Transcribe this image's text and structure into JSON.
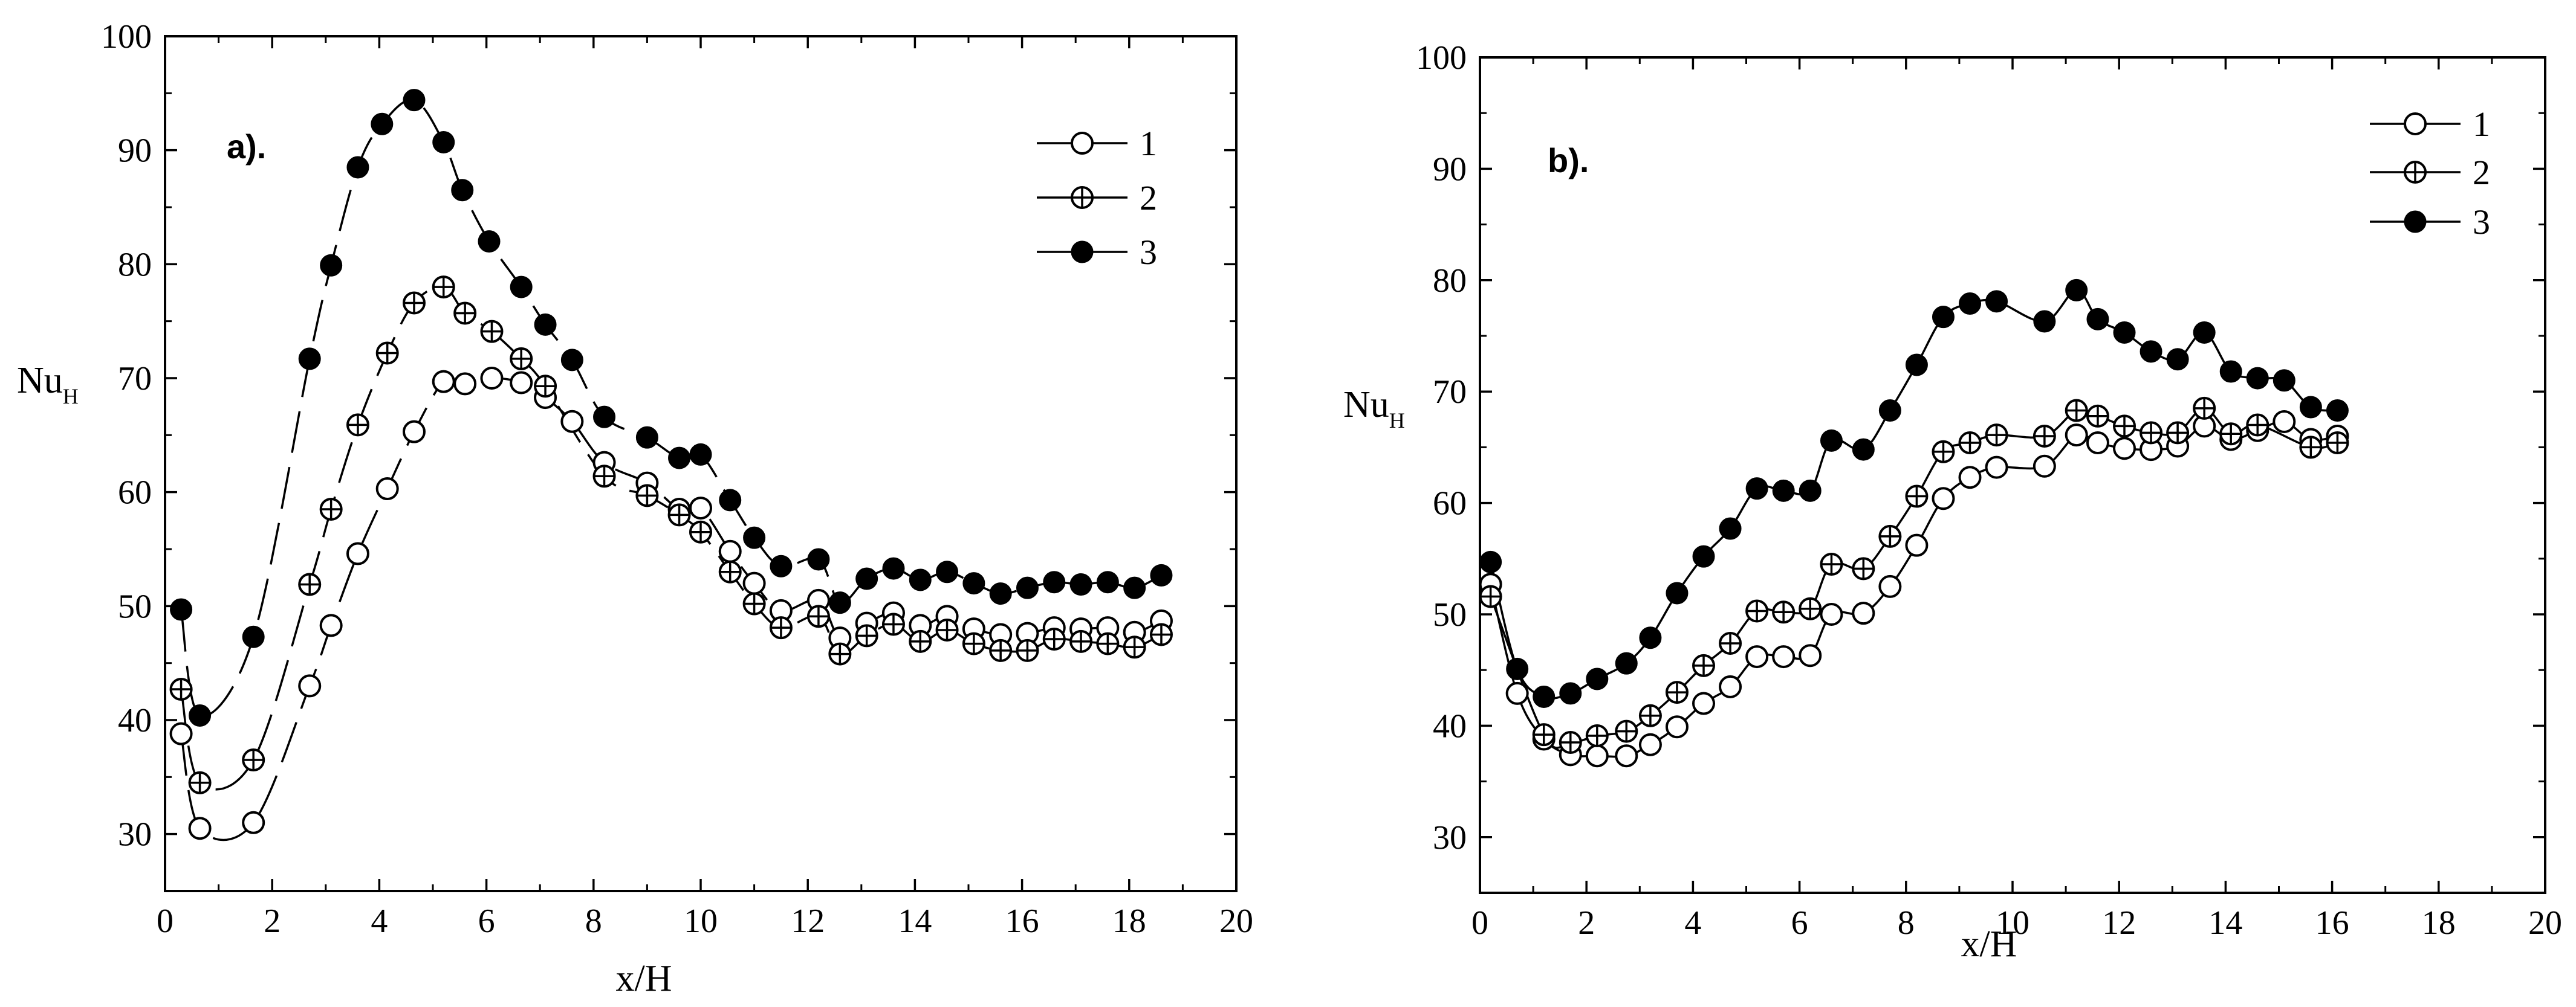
{
  "chart_data": [
    {
      "type": "scatter",
      "panel_label": "a).",
      "xlabel": "x/H",
      "ylabel_main": "Nu",
      "ylabel_sub": "H",
      "xlim": [
        0,
        20
      ],
      "ylim": [
        25,
        100
      ],
      "x_ticks": [
        0,
        2,
        4,
        6,
        8,
        10,
        12,
        14,
        16,
        18,
        20
      ],
      "y_ticks": [
        30,
        40,
        50,
        60,
        70,
        80,
        90,
        100
      ],
      "x_tick_labels": [
        "0",
        "2",
        "4",
        "6",
        "8",
        "10",
        "12",
        "14",
        "16",
        "18",
        "20"
      ],
      "y_tick_labels": [
        "30",
        "40",
        "50",
        "60",
        "70",
        "80",
        "90",
        "100"
      ],
      "legend_position": "top-right",
      "series": [
        {
          "name": "1",
          "marker": "open-circle",
          "line": "long-dash",
          "x": [
            0.3,
            0.65,
            1.65,
            2.7,
            3.1,
            3.6,
            4.15,
            4.65,
            5.2,
            5.6,
            6.1,
            6.65,
            7.1,
            7.6,
            8.2,
            9.0,
            9.6,
            10.0,
            10.55,
            11.0,
            11.5,
            12.2,
            12.6,
            13.1,
            13.6,
            14.1,
            14.6,
            15.1,
            15.6,
            16.1,
            16.6,
            17.1,
            17.6,
            18.1,
            18.6
          ],
          "y": [
            38.8,
            30.5,
            31.0,
            43.0,
            48.3,
            54.6,
            60.3,
            65.3,
            69.7,
            69.5,
            70.0,
            69.6,
            68.3,
            66.2,
            62.6,
            60.8,
            58.5,
            58.6,
            54.8,
            52.0,
            49.6,
            50.5,
            47.2,
            48.5,
            49.4,
            48.3,
            49.1,
            48.0,
            47.5,
            47.6,
            48.1,
            48.0,
            48.1,
            47.7,
            48.7
          ]
        },
        {
          "name": "2",
          "marker": "crossed-circle",
          "line": "long-dash",
          "x": [
            0.3,
            0.65,
            1.65,
            2.7,
            3.1,
            3.6,
            4.15,
            4.65,
            5.2,
            5.6,
            6.1,
            6.65,
            7.1,
            8.2,
            9.0,
            9.6,
            10.0,
            10.55,
            11.0,
            11.5,
            12.2,
            12.6,
            13.1,
            13.6,
            14.1,
            14.6,
            15.1,
            15.6,
            16.1,
            16.6,
            17.1,
            17.6,
            18.1,
            18.6
          ],
          "y": [
            42.7,
            34.5,
            36.5,
            51.9,
            58.5,
            65.9,
            72.2,
            76.6,
            78.0,
            75.7,
            74.1,
            71.7,
            69.3,
            61.4,
            59.7,
            58.0,
            56.5,
            53.0,
            50.2,
            48.1,
            49.1,
            45.8,
            47.4,
            48.4,
            46.9,
            47.9,
            46.7,
            46.1,
            46.1,
            47.1,
            46.9,
            46.7,
            46.4,
            47.5
          ]
        },
        {
          "name": "3",
          "marker": "filled-circle",
          "line": "long-dash",
          "x": [
            0.3,
            0.65,
            1.65,
            2.7,
            3.1,
            3.6,
            4.05,
            4.65,
            5.2,
            5.55,
            6.05,
            6.65,
            7.1,
            7.6,
            8.2,
            9.0,
            9.6,
            10.0,
            10.55,
            11.0,
            11.5,
            12.2,
            12.6,
            13.1,
            13.6,
            14.1,
            14.6,
            15.1,
            15.6,
            16.1,
            16.6,
            17.1,
            17.6,
            18.1,
            18.6
          ],
          "y": [
            49.7,
            40.4,
            47.3,
            71.7,
            79.9,
            88.5,
            92.3,
            94.4,
            90.7,
            86.5,
            82.0,
            78.0,
            74.7,
            71.6,
            66.6,
            64.8,
            63.0,
            63.3,
            59.3,
            56.0,
            53.5,
            54.1,
            50.3,
            52.4,
            53.3,
            52.3,
            53.0,
            52.0,
            51.1,
            51.6,
            52.1,
            51.9,
            52.1,
            51.6,
            52.7
          ]
        }
      ]
    },
    {
      "type": "line",
      "panel_label": "b).",
      "xlabel": "x/H",
      "ylabel_main": "Nu",
      "ylabel_sub": "H",
      "xlim": [
        0,
        20
      ],
      "ylim": [
        25,
        100
      ],
      "x_ticks": [
        0,
        2,
        4,
        6,
        8,
        10,
        12,
        14,
        16,
        18,
        20
      ],
      "y_ticks": [
        30,
        40,
        50,
        60,
        70,
        80,
        90,
        100
      ],
      "x_tick_labels": [
        "0",
        "2",
        "4",
        "6",
        "8",
        "10",
        "12",
        "14",
        "16",
        "18",
        "20"
      ],
      "y_tick_labels": [
        "30",
        "40",
        "50",
        "60",
        "70",
        "80",
        "90",
        "100"
      ],
      "legend_position": "top-right",
      "series": [
        {
          "name": "1",
          "marker": "open-circle",
          "line": "solid",
          "x": [
            0.2,
            0.7,
            1.2,
            1.7,
            2.2,
            2.75,
            3.2,
            3.7,
            4.2,
            4.7,
            5.2,
            5.7,
            6.2,
            6.6,
            7.2,
            7.7,
            8.2,
            8.7,
            9.2,
            9.7,
            10.6,
            11.2,
            11.6,
            12.1,
            12.6,
            13.1,
            13.6,
            14.1,
            14.6,
            15.1,
            15.6,
            16.1
          ],
          "y": [
            52.7,
            42.9,
            38.8,
            37.4,
            37.3,
            37.3,
            38.3,
            39.9,
            42.0,
            43.5,
            46.2,
            46.2,
            46.3,
            50.0,
            50.1,
            52.5,
            56.2,
            60.4,
            62.3,
            63.2,
            63.3,
            66.1,
            65.4,
            64.9,
            64.8,
            65.1,
            66.9,
            65.7,
            66.5,
            67.3,
            65.7,
            66.0
          ]
        },
        {
          "name": "2",
          "marker": "crossed-circle",
          "line": "solid",
          "x": [
            0.2,
            1.2,
            1.7,
            2.2,
            2.75,
            3.2,
            3.7,
            4.2,
            4.7,
            5.2,
            5.7,
            6.2,
            6.6,
            7.2,
            7.7,
            8.2,
            8.7,
            9.2,
            9.7,
            10.6,
            11.2,
            11.6,
            12.1,
            12.6,
            13.1,
            13.6,
            14.1,
            14.6,
            15.6,
            16.1
          ],
          "y": [
            51.6,
            39.2,
            38.5,
            39.1,
            39.5,
            40.9,
            43.0,
            45.4,
            47.4,
            50.3,
            50.2,
            50.5,
            54.5,
            54.1,
            57.0,
            60.6,
            64.6,
            65.4,
            66.1,
            66.0,
            68.3,
            67.8,
            66.9,
            66.3,
            66.3,
            68.5,
            66.2,
            67.0,
            65.0,
            65.4
          ]
        },
        {
          "name": "3",
          "marker": "filled-circle",
          "line": "solid",
          "x": [
            0.2,
            0.7,
            1.2,
            1.7,
            2.2,
            2.75,
            3.2,
            3.7,
            4.2,
            4.7,
            5.2,
            5.7,
            6.2,
            6.6,
            7.2,
            7.7,
            8.2,
            8.7,
            9.2,
            9.7,
            10.6,
            11.2,
            11.6,
            12.1,
            12.6,
            13.1,
            13.6,
            14.1,
            14.6,
            15.1,
            15.6,
            16.1
          ],
          "y": [
            54.7,
            45.1,
            42.6,
            42.9,
            44.2,
            45.6,
            47.9,
            51.9,
            55.2,
            57.7,
            61.3,
            61.1,
            61.1,
            65.6,
            64.8,
            68.3,
            72.4,
            76.7,
            77.9,
            78.1,
            76.3,
            79.1,
            76.5,
            75.3,
            73.6,
            72.9,
            75.3,
            71.8,
            71.2,
            71.0,
            68.6,
            68.3
          ]
        }
      ]
    }
  ]
}
